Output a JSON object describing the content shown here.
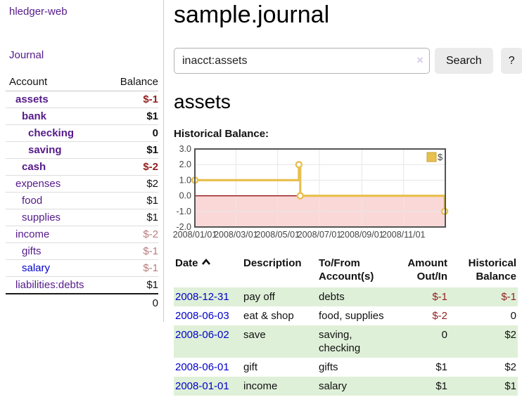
{
  "sidebar": {
    "app_title": "hledger-web",
    "nav": {
      "journal_label": "Journal"
    },
    "accounts_table": {
      "headers": {
        "account": "Account",
        "balance": "Balance"
      },
      "rows": [
        {
          "name": "assets",
          "indent": 0,
          "bold": true,
          "balance": "$-1",
          "balance_class": "neg-strong"
        },
        {
          "name": "bank",
          "indent": 1,
          "bold": true,
          "balance": "$1",
          "balance_class": ""
        },
        {
          "name": "checking",
          "indent": 2,
          "bold": true,
          "balance": "0",
          "balance_class": ""
        },
        {
          "name": "saving",
          "indent": 2,
          "bold": true,
          "balance": "$1",
          "balance_class": ""
        },
        {
          "name": "cash",
          "indent": 1,
          "bold": true,
          "balance": "$-2",
          "balance_class": "neg-strong"
        },
        {
          "name": "expenses",
          "indent": 0,
          "bold": false,
          "balance": "$2",
          "balance_class": ""
        },
        {
          "name": "food",
          "indent": 1,
          "bold": false,
          "balance": "$1",
          "balance_class": ""
        },
        {
          "name": "supplies",
          "indent": 1,
          "bold": false,
          "balance": "$1",
          "balance_class": ""
        },
        {
          "name": "income",
          "indent": 0,
          "bold": false,
          "balance": "$-2",
          "balance_class": "neg-muted"
        },
        {
          "name": "gifts",
          "indent": 1,
          "bold": false,
          "balance": "$-1",
          "balance_class": "neg-muted"
        },
        {
          "name": "salary",
          "indent": 1,
          "bold": false,
          "balance": "$-1",
          "balance_class": "neg-muted",
          "link_color": "blue"
        },
        {
          "name": "liabilities:debts",
          "indent": 0,
          "bold": false,
          "balance": "$1",
          "balance_class": ""
        }
      ],
      "total": "0"
    }
  },
  "header": {
    "title": "sample.journal",
    "search": {
      "value": "inacct:assets",
      "clear_icon": "×",
      "button_label": "Search",
      "help_label": "?"
    }
  },
  "main": {
    "account_heading": "assets",
    "chart_label": "Historical Balance:"
  },
  "chart_data": {
    "type": "line",
    "step": true,
    "title": "Historical Balance",
    "series": [
      {
        "name": "$",
        "color": "#e8c050",
        "points": [
          [
            "2008-01-01",
            1
          ],
          [
            "2008-06-01",
            2
          ],
          [
            "2008-06-03",
            0
          ],
          [
            "2008-12-31",
            -1
          ]
        ]
      }
    ],
    "xlim": [
      "2008-01-01",
      "2009-01-01"
    ],
    "ylim": [
      -2,
      3
    ],
    "x_ticks": [
      "2008/01/01",
      "2008/03/01",
      "2008/05/01",
      "2008/07/01",
      "2008/09/01",
      "2008/11/01"
    ],
    "y_ticks": [
      {
        "v": 3,
        "label": "3.0"
      },
      {
        "v": 2,
        "label": "2.0"
      },
      {
        "v": 1,
        "label": "1.0"
      },
      {
        "v": 0,
        "label": "0.0"
      },
      {
        "v": -1,
        "label": "-1.0"
      },
      {
        "v": -2,
        "label": "-2.0"
      }
    ],
    "grid": true,
    "legend": {
      "label": "$",
      "position": "top-right"
    },
    "colors": {
      "line": "#e8c050",
      "marker_fill": "#ffffff",
      "negative_region": "#fbd8d8",
      "zero_line": "#8b0000",
      "gridline": "#e6e6e6",
      "plot_border": "#545454",
      "tick_text": "#444444"
    }
  },
  "register_table": {
    "headers": {
      "date": "Date",
      "sort_icon": "chevron-up",
      "description": "Description",
      "accounts": "To/From Account(s)",
      "amount": "Amount Out/In",
      "balance": "Historical Balance"
    },
    "rows": [
      {
        "date": "2008-12-31",
        "description": "pay off",
        "accounts": "debts",
        "amount": "$-1",
        "amount_class": "neg-strong",
        "balance": "$-1",
        "balance_class": "neg-strong"
      },
      {
        "date": "2008-06-03",
        "description": "eat & shop",
        "accounts": "food, supplies",
        "amount": "$-2",
        "amount_class": "neg-strong",
        "balance": "0",
        "balance_class": ""
      },
      {
        "date": "2008-06-02",
        "description": "save",
        "accounts": "saving, checking",
        "amount": "0",
        "amount_class": "",
        "balance": "$2",
        "balance_class": ""
      },
      {
        "date": "2008-06-01",
        "description": "gift",
        "accounts": "gifts",
        "amount": "$1",
        "amount_class": "",
        "balance": "$2",
        "balance_class": ""
      },
      {
        "date": "2008-01-01",
        "description": "income",
        "accounts": "salary",
        "amount": "$1",
        "amount_class": "",
        "balance": "$1",
        "balance_class": ""
      }
    ]
  }
}
